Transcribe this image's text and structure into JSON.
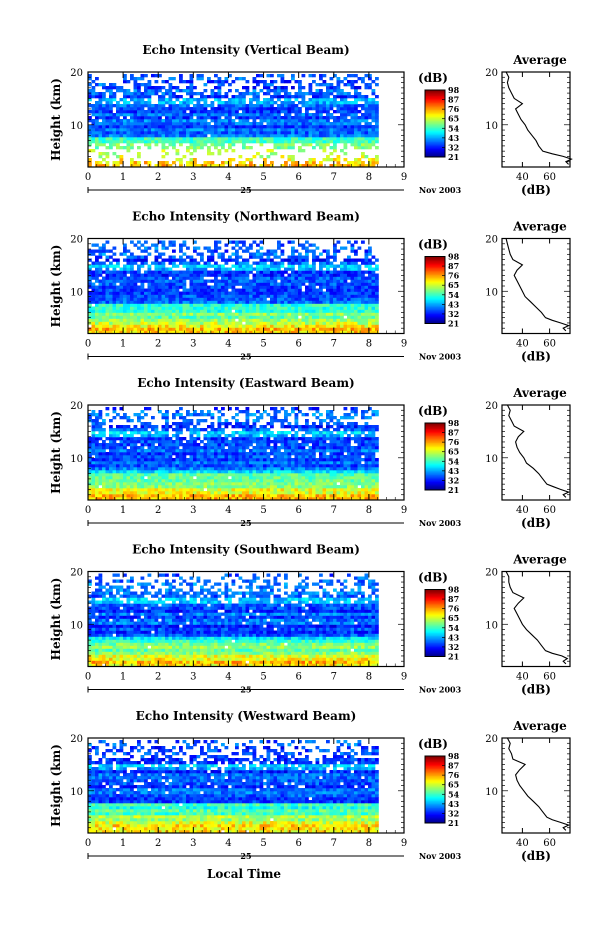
{
  "chart_data": {
    "type": "heatmap",
    "x_label": "Local Time",
    "x_range": [
      0,
      9
    ],
    "x_ticks": [
      "0",
      "1",
      "2",
      "3",
      "4",
      "5",
      "6",
      "7",
      "8",
      "9"
    ],
    "day_label": "25",
    "date_label": "Nov 2003",
    "y_label": "Height (km)",
    "y_range": [
      2,
      20
    ],
    "y_ticks": [
      "10",
      "20"
    ],
    "data_end_hour": 8.2,
    "colorbar": {
      "unit": "(dB)",
      "ticks": [
        "21",
        "32",
        "43",
        "54",
        "65",
        "76",
        "87",
        "98"
      ],
      "range": [
        21,
        98
      ]
    },
    "average_panel": {
      "title": "Average",
      "x_label": "(dB)",
      "x_range": [
        25,
        75
      ],
      "x_ticks": [
        "40",
        "60"
      ],
      "y_ticks": [
        "10",
        "20"
      ]
    },
    "panels": [
      {
        "title": "Echo Intensity (Vertical Beam)",
        "profile": [
          [
            2.5,
            74
          ],
          [
            3,
            72
          ],
          [
            3.5,
            76
          ],
          [
            4,
            70
          ],
          [
            4.5,
            62
          ],
          [
            5,
            55
          ],
          [
            6,
            52
          ],
          [
            7,
            50
          ],
          [
            8,
            47
          ],
          [
            9,
            44
          ],
          [
            10,
            42
          ],
          [
            11,
            39
          ],
          [
            12,
            37
          ],
          [
            13,
            35
          ],
          [
            14,
            40
          ],
          [
            15,
            34
          ],
          [
            16,
            32
          ],
          [
            17,
            30
          ],
          [
            18,
            29
          ],
          [
            19,
            30
          ],
          [
            20,
            28
          ]
        ]
      },
      {
        "title": "Echo Intensity (Northward Beam)",
        "profile": [
          [
            2.5,
            72
          ],
          [
            3,
            70
          ],
          [
            3.5,
            74
          ],
          [
            4,
            68
          ],
          [
            4.5,
            62
          ],
          [
            5,
            57
          ],
          [
            6,
            54
          ],
          [
            7,
            50
          ],
          [
            8,
            46
          ],
          [
            9,
            42
          ],
          [
            10,
            40
          ],
          [
            11,
            38
          ],
          [
            12,
            36
          ],
          [
            13,
            34
          ],
          [
            14,
            36
          ],
          [
            15,
            40
          ],
          [
            16,
            33
          ],
          [
            17,
            31
          ],
          [
            18,
            30
          ],
          [
            19,
            29
          ],
          [
            20,
            28
          ]
        ]
      },
      {
        "title": "Echo Intensity (Eastward Beam)",
        "profile": [
          [
            2.5,
            72
          ],
          [
            3,
            70
          ],
          [
            3.5,
            74
          ],
          [
            4,
            68
          ],
          [
            4.5,
            63
          ],
          [
            5,
            58
          ],
          [
            6,
            55
          ],
          [
            7,
            52
          ],
          [
            8,
            48
          ],
          [
            9,
            43
          ],
          [
            10,
            41
          ],
          [
            11,
            38
          ],
          [
            12,
            36
          ],
          [
            13,
            35
          ],
          [
            14,
            37
          ],
          [
            15,
            41
          ],
          [
            16,
            34
          ],
          [
            17,
            32
          ],
          [
            18,
            30
          ],
          [
            19,
            31
          ],
          [
            20,
            29
          ]
        ]
      },
      {
        "title": "Echo Intensity (Southward Beam)",
        "profile": [
          [
            2.5,
            72
          ],
          [
            3,
            70
          ],
          [
            3.5,
            73
          ],
          [
            4,
            69
          ],
          [
            4.5,
            62
          ],
          [
            5,
            57
          ],
          [
            6,
            54
          ],
          [
            7,
            51
          ],
          [
            8,
            47
          ],
          [
            9,
            43
          ],
          [
            10,
            40
          ],
          [
            11,
            38
          ],
          [
            12,
            36
          ],
          [
            13,
            34
          ],
          [
            14,
            37
          ],
          [
            15,
            41
          ],
          [
            16,
            33
          ],
          [
            17,
            31
          ],
          [
            18,
            30
          ],
          [
            19,
            30
          ],
          [
            20,
            28
          ]
        ]
      },
      {
        "title": "Echo Intensity (Westward Beam)",
        "profile": [
          [
            2.5,
            72
          ],
          [
            3,
            70
          ],
          [
            3.5,
            74
          ],
          [
            4,
            68
          ],
          [
            4.5,
            62
          ],
          [
            5,
            58
          ],
          [
            6,
            55
          ],
          [
            7,
            52
          ],
          [
            8,
            48
          ],
          [
            9,
            44
          ],
          [
            10,
            41
          ],
          [
            11,
            38
          ],
          [
            12,
            36
          ],
          [
            13,
            35
          ],
          [
            14,
            38
          ],
          [
            15,
            42
          ],
          [
            16,
            33
          ],
          [
            17,
            32
          ],
          [
            18,
            30
          ],
          [
            19,
            31
          ],
          [
            20,
            29
          ]
        ]
      }
    ]
  }
}
